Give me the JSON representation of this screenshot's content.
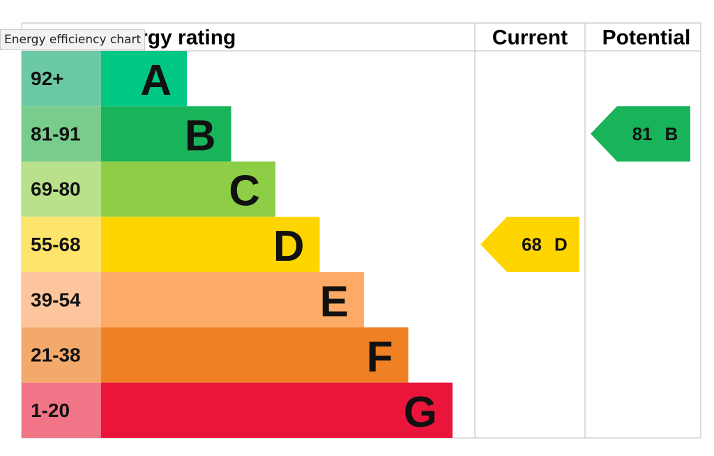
{
  "tooltip": "Energy efficiency chart",
  "header": {
    "rating": "Energy rating",
    "current": "Current",
    "potential": "Potential"
  },
  "bands": [
    {
      "range": "92+",
      "letter": "A",
      "color": "#00c781",
      "light": "#6cc9a6"
    },
    {
      "range": "81-91",
      "letter": "B",
      "color": "#19b459",
      "light": "#78cc8c"
    },
    {
      "range": "69-80",
      "letter": "C",
      "color": "#8dce46",
      "light": "#b9e08a"
    },
    {
      "range": "55-68",
      "letter": "D",
      "color": "#ffd500",
      "light": "#ffe46b"
    },
    {
      "range": "39-54",
      "letter": "E",
      "color": "#fcaa65",
      "light": "#fdc59b"
    },
    {
      "range": "21-38",
      "letter": "F",
      "color": "#ef8023",
      "light": "#f3a96c"
    },
    {
      "range": "1-20",
      "letter": "G",
      "color": "#e9153b",
      "light": "#f07586"
    }
  ],
  "current": {
    "value": 68,
    "letter": "D"
  },
  "potential": {
    "value": 81,
    "letter": "B"
  }
}
